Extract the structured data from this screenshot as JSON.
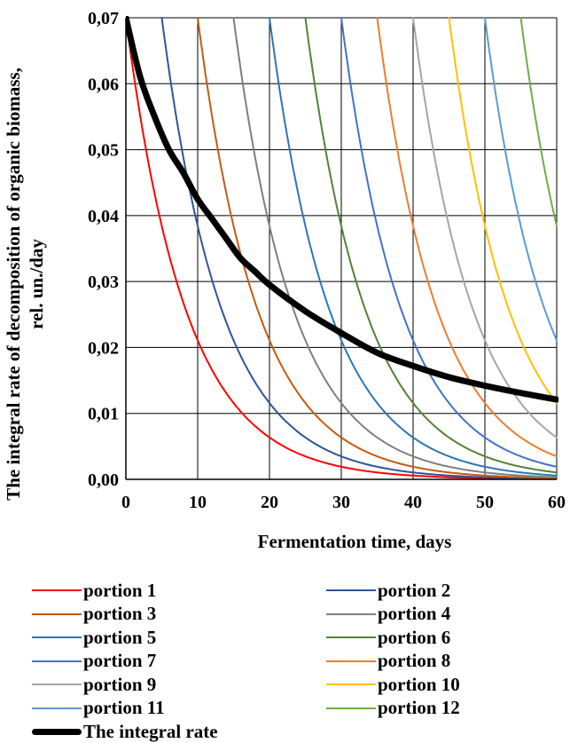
{
  "chart_data": {
    "type": "line",
    "title": "",
    "xlabel": "Fermentation time, days",
    "ylabel": "The integral rate of decomposition of organic biomass, rel. un./day",
    "xlim": [
      0,
      60
    ],
    "ylim": [
      0,
      0.07
    ],
    "x_ticks": [
      0,
      10,
      20,
      30,
      40,
      50,
      60
    ],
    "x_tick_labels": [
      "0",
      "10",
      "20",
      "30",
      "40",
      "50",
      "60"
    ],
    "y_ticks": [
      0,
      0.01,
      0.02,
      0.03,
      0.04,
      0.05,
      0.06,
      0.07
    ],
    "y_tick_labels": [
      "0,00",
      "0,01",
      "0,02",
      "0,03",
      "0,04",
      "0,05",
      "0,06",
      "0,07"
    ],
    "grid": true,
    "legend_position": "bottom",
    "series": [
      {
        "name": "portion 1",
        "color": "#ff0000",
        "start": 0,
        "peak": 0.07,
        "decay": 0.12
      },
      {
        "name": "portion 2",
        "color": "#2f5597",
        "start": 5,
        "peak": 0.07,
        "decay": 0.12
      },
      {
        "name": "portion 3",
        "color": "#c55a11",
        "start": 10,
        "peak": 0.07,
        "decay": 0.12
      },
      {
        "name": "portion 4",
        "color": "#7f7f7f",
        "start": 15,
        "peak": 0.07,
        "decay": 0.12
      },
      {
        "name": "portion 5",
        "color": "#2e75b6",
        "start": 20,
        "peak": 0.07,
        "decay": 0.12
      },
      {
        "name": "portion 6",
        "color": "#548235",
        "start": 25,
        "peak": 0.07,
        "decay": 0.12
      },
      {
        "name": "portion 7",
        "color": "#4472c4",
        "start": 30,
        "peak": 0.07,
        "decay": 0.12
      },
      {
        "name": "portion 8",
        "color": "#ed7d31",
        "start": 35,
        "peak": 0.07,
        "decay": 0.12
      },
      {
        "name": "portion 9",
        "color": "#a5a5a5",
        "start": 40,
        "peak": 0.07,
        "decay": 0.12
      },
      {
        "name": "portion 10",
        "color": "#ffc000",
        "start": 45,
        "peak": 0.07,
        "decay": 0.12
      },
      {
        "name": "portion 11",
        "color": "#5b9bd5",
        "start": 50,
        "peak": 0.07,
        "decay": 0.12
      },
      {
        "name": "portion 12",
        "color": "#70ad47",
        "start": 55,
        "peak": 0.07,
        "decay": 0.12
      },
      {
        "name": "The integral rate",
        "color": "#000000",
        "integral": true,
        "x": [
          0,
          2,
          4,
          6,
          8,
          10,
          12,
          14,
          16,
          18,
          20,
          25,
          30,
          35,
          40,
          45,
          50,
          55,
          60
        ],
        "values": [
          0.07,
          0.061,
          0.055,
          0.05,
          0.0465,
          0.0425,
          0.0395,
          0.0365,
          0.0335,
          0.0315,
          0.0295,
          0.0255,
          0.0222,
          0.0192,
          0.0172,
          0.0155,
          0.0142,
          0.0131,
          0.0121
        ]
      }
    ]
  }
}
